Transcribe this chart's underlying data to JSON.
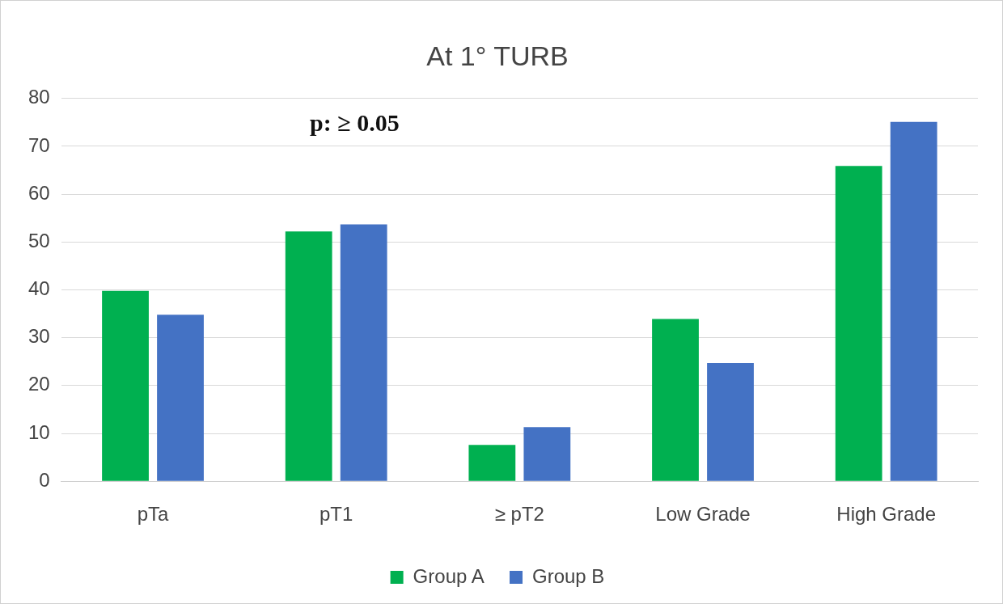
{
  "chart_data": {
    "type": "bar",
    "title": "At 1° TURB",
    "categories": [
      "pTa",
      "pT1",
      "≥ pT2",
      "Low Grade",
      "High Grade"
    ],
    "series": [
      {
        "name": "Group A",
        "color": "#00b050",
        "values": [
          39.8,
          52.2,
          7.6,
          33.9,
          65.9
        ]
      },
      {
        "name": "Group B",
        "color": "#4472c4",
        "values": [
          34.8,
          53.7,
          11.3,
          24.7,
          75.1
        ]
      }
    ],
    "ylim": [
      0,
      80
    ],
    "yticks": [
      0,
      10,
      20,
      30,
      40,
      50,
      60,
      70,
      80
    ],
    "grid": "y",
    "legend": "bottom",
    "annotations": [
      "p: ≥ 0.05"
    ]
  }
}
